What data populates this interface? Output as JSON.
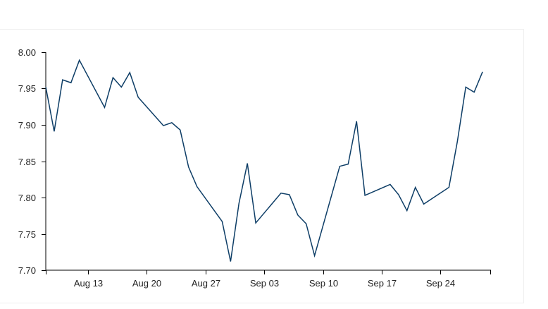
{
  "chart_data": {
    "type": "line",
    "title": "",
    "xlabel": "",
    "ylabel": "",
    "ylim": [
      7.7,
      8.0
    ],
    "xlim": [
      "2023-08-08",
      "2023-09-30"
    ],
    "grid": false,
    "y_ticks": [
      "7.70",
      "7.75",
      "7.80",
      "7.85",
      "7.90",
      "7.95",
      "8.00"
    ],
    "x_ticks": [
      {
        "date": "2023-08-13",
        "label": "Aug 13"
      },
      {
        "date": "2023-08-20",
        "label": "Aug 20"
      },
      {
        "date": "2023-08-27",
        "label": "Aug 27"
      },
      {
        "date": "2023-09-03",
        "label": "Sep 03"
      },
      {
        "date": "2023-09-10",
        "label": "Sep 10"
      },
      {
        "date": "2023-09-17",
        "label": "Sep 17"
      },
      {
        "date": "2023-09-24",
        "label": "Sep 24"
      }
    ],
    "series": [
      {
        "color": "#0d3d66",
        "points": [
          {
            "x": "2023-08-08",
            "y": 7.952
          },
          {
            "x": "2023-08-09",
            "y": 7.891
          },
          {
            "x": "2023-08-10",
            "y": 7.962
          },
          {
            "x": "2023-08-11",
            "y": 7.958
          },
          {
            "x": "2023-08-12",
            "y": 7.989
          },
          {
            "x": "2023-08-15",
            "y": 7.924
          },
          {
            "x": "2023-08-16",
            "y": 7.965
          },
          {
            "x": "2023-08-17",
            "y": 7.952
          },
          {
            "x": "2023-08-18",
            "y": 7.972
          },
          {
            "x": "2023-08-19",
            "y": 7.938
          },
          {
            "x": "2023-08-22",
            "y": 7.899
          },
          {
            "x": "2023-08-23",
            "y": 7.903
          },
          {
            "x": "2023-08-24",
            "y": 7.893
          },
          {
            "x": "2023-08-25",
            "y": 7.842
          },
          {
            "x": "2023-08-26",
            "y": 7.815
          },
          {
            "x": "2023-08-29",
            "y": 7.767
          },
          {
            "x": "2023-08-30",
            "y": 7.712
          },
          {
            "x": "2023-08-31",
            "y": 7.792
          },
          {
            "x": "2023-09-01",
            "y": 7.847
          },
          {
            "x": "2023-09-02",
            "y": 7.765
          },
          {
            "x": "2023-09-05",
            "y": 7.806
          },
          {
            "x": "2023-09-06",
            "y": 7.804
          },
          {
            "x": "2023-09-07",
            "y": 7.776
          },
          {
            "x": "2023-09-08",
            "y": 7.764
          },
          {
            "x": "2023-09-09",
            "y": 7.72
          },
          {
            "x": "2023-09-12",
            "y": 7.843
          },
          {
            "x": "2023-09-13",
            "y": 7.846
          },
          {
            "x": "2023-09-14",
            "y": 7.905
          },
          {
            "x": "2023-09-15",
            "y": 7.803
          },
          {
            "x": "2023-09-18",
            "y": 7.818
          },
          {
            "x": "2023-09-19",
            "y": 7.804
          },
          {
            "x": "2023-09-20",
            "y": 7.782
          },
          {
            "x": "2023-09-21",
            "y": 7.814
          },
          {
            "x": "2023-09-22",
            "y": 7.791
          },
          {
            "x": "2023-09-25",
            "y": 7.814
          },
          {
            "x": "2023-09-26",
            "y": 7.877
          },
          {
            "x": "2023-09-27",
            "y": 7.952
          },
          {
            "x": "2023-09-28",
            "y": 7.945
          },
          {
            "x": "2023-09-29",
            "y": 7.973
          }
        ]
      }
    ]
  }
}
